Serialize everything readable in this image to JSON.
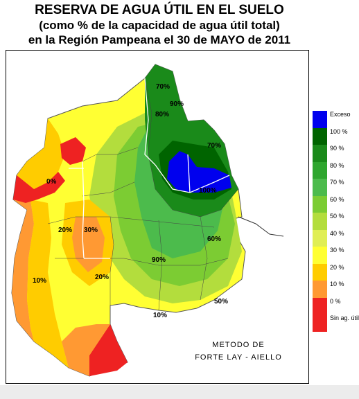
{
  "title": {
    "line1": "RESERVA DE AGUA ÚTIL EN EL SUELO",
    "line2": "(como % de la capacidad de agua útil total)",
    "line3": "en la Región Pampeana el 30 de MAYO de 2011"
  },
  "method": {
    "line1": "METODO DE",
    "line2": "FORTE LAY - AIELLO"
  },
  "legend": [
    {
      "label": "Exceso",
      "color": "#0000ee"
    },
    {
      "label": "100 %",
      "color": "#006400"
    },
    {
      "label": "90 %",
      "color": "#1a8a1a"
    },
    {
      "label": "80 %",
      "color": "#2ea62e"
    },
    {
      "label": "70 %",
      "color": "#4cbb4c"
    },
    {
      "label": "60 %",
      "color": "#7ccc33"
    },
    {
      "label": "50 %",
      "color": "#b3dd3d"
    },
    {
      "label": "40 %",
      "color": "#e0ee55"
    },
    {
      "label": "30 %",
      "color": "#ffff33"
    },
    {
      "label": "20 %",
      "color": "#ffcc00"
    },
    {
      "label": "10 %",
      "color": "#ff9933"
    },
    {
      "label": "0 %",
      "color": "#ee2222"
    },
    {
      "label": "Sin ag. útil",
      "color": "#ee2222"
    }
  ],
  "map_labels": {
    "a": "70%",
    "b": "80%",
    "c": "90%",
    "d": "70%",
    "e": "0%",
    "f": "30%",
    "g": "20%",
    "h": "10%",
    "i": "100%",
    "j": "10%",
    "k": "20%",
    "l": "60%",
    "m": "90%",
    "n": "50%"
  }
}
